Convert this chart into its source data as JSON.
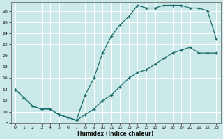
{
  "xlabel": "Humidex (Indice chaleur)",
  "bg_color": "#cce9e9",
  "grid_color": "#ffffff",
  "line_color": "#1a6b6b",
  "xlim": [
    -0.5,
    23.5
  ],
  "ylim": [
    8,
    29.5
  ],
  "xticks": [
    0,
    1,
    2,
    3,
    4,
    5,
    6,
    7,
    8,
    9,
    10,
    11,
    12,
    13,
    14,
    15,
    16,
    17,
    18,
    19,
    20,
    21,
    22,
    23
  ],
  "yticks": [
    8,
    10,
    12,
    14,
    16,
    18,
    20,
    22,
    24,
    26,
    28
  ],
  "curve1_x": [
    0,
    1,
    2,
    3,
    4,
    5,
    6,
    7,
    8,
    9,
    10,
    11,
    12,
    13,
    14,
    15,
    16,
    17,
    18,
    19,
    20,
    21,
    22,
    23
  ],
  "curve1_y": [
    14,
    12.5,
    11,
    10.5,
    10.5,
    9.5,
    9.0,
    8.5,
    13,
    16,
    20.5,
    23.5,
    25.5,
    27.0,
    29.0,
    28.5,
    28.5,
    29.0,
    29.0,
    29.0,
    28.5,
    28.5,
    28.0,
    23.0
  ],
  "curve2_x": [
    0,
    1,
    2,
    3,
    4,
    5,
    6,
    7,
    8,
    9,
    10,
    11,
    12,
    13,
    14,
    15,
    16,
    17,
    18,
    19,
    20,
    21,
    22,
    23
  ],
  "curve2_y": [
    14,
    12.5,
    11,
    10.5,
    10.5,
    9.5,
    9.0,
    8.5,
    9.5,
    10.5,
    12.0,
    13.0,
    14.5,
    16.0,
    17.0,
    17.5,
    18.5,
    19.5,
    20.5,
    21.0,
    21.5,
    20.5,
    20.5,
    20.5
  ]
}
